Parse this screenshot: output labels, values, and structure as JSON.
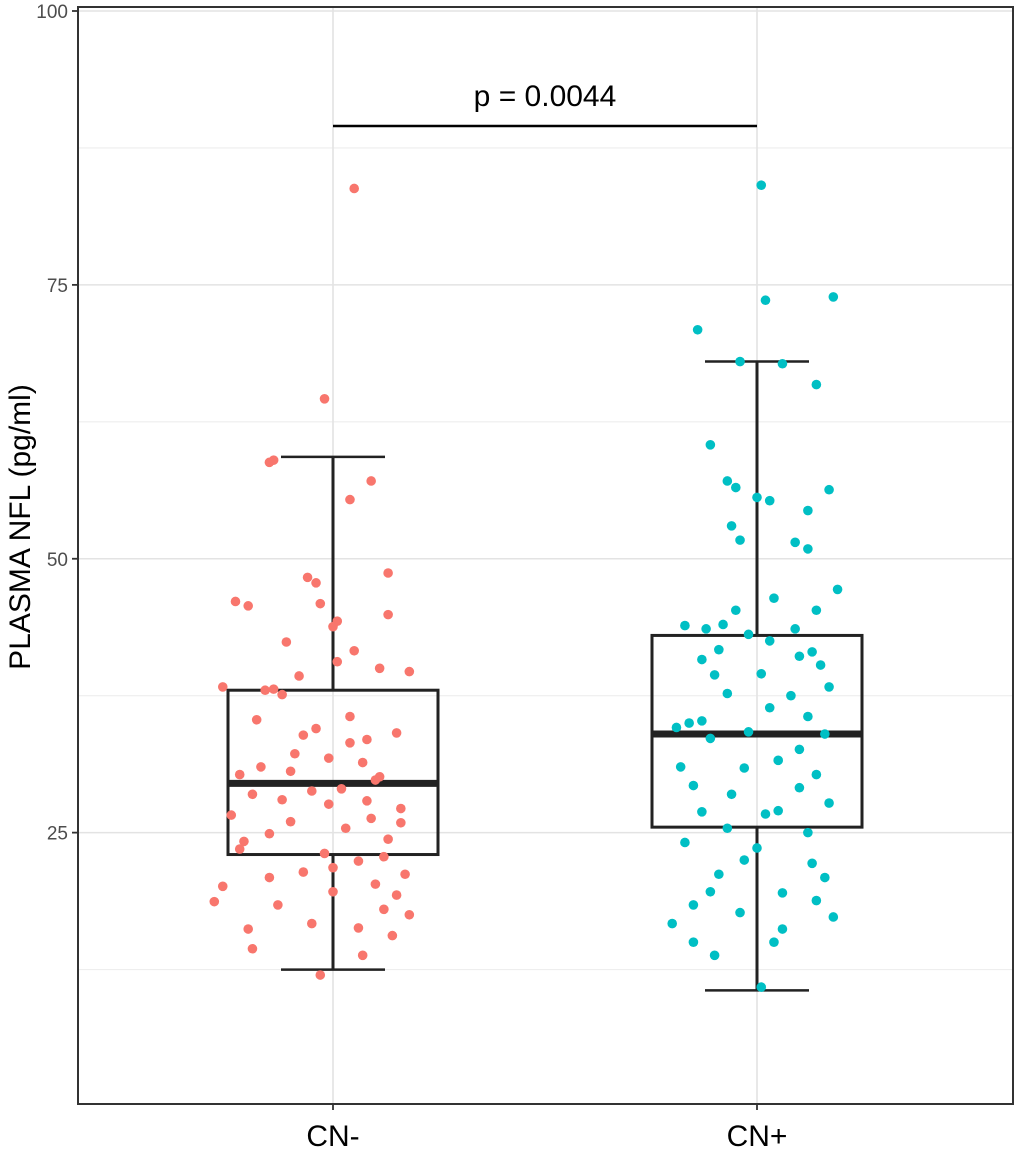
{
  "chart_data": {
    "type": "boxplot",
    "title": "",
    "xlabel": "",
    "ylabel": "PLASMA NFL (pg/ml)",
    "ylim": [
      0,
      100
    ],
    "yticks": [
      25,
      50,
      75,
      100
    ],
    "grid": true,
    "categories": [
      "CN-",
      "CN+"
    ],
    "colors": [
      "#F8766D",
      "#00BFC4"
    ],
    "annotation": {
      "text": "p = 0.0044",
      "level": 89.5
    },
    "boxes": [
      {
        "category": "CN-",
        "whisker_low": 12.5,
        "q1": 23.0,
        "median": 29.5,
        "q3": 38.0,
        "whisker_high": 59.3
      },
      {
        "category": "CN+",
        "whisker_low": 10.6,
        "q1": 25.5,
        "median": 34.0,
        "q3": 43.0,
        "whisker_high": 68.0
      }
    ],
    "points": [
      [
        [
          0.05,
          83.8
        ],
        [
          -0.02,
          64.6
        ],
        [
          -0.14,
          59.0
        ],
        [
          -0.15,
          58.8
        ],
        [
          0.09,
          57.1
        ],
        [
          0.04,
          55.4
        ],
        [
          -0.23,
          46.1
        ],
        [
          -0.2,
          45.7
        ],
        [
          -0.03,
          45.9
        ],
        [
          0.13,
          44.9
        ],
        [
          0.01,
          44.3
        ],
        [
          0.0,
          43.8
        ],
        [
          -0.11,
          42.4
        ],
        [
          0.05,
          41.6
        ],
        [
          0.01,
          40.6
        ],
        [
          0.11,
          40.0
        ],
        [
          -0.08,
          39.3
        ],
        [
          -0.14,
          38.1
        ],
        [
          -0.16,
          38.0
        ],
        [
          -0.12,
          37.6
        ],
        [
          -0.26,
          38.3
        ],
        [
          -0.18,
          35.3
        ],
        [
          -0.07,
          33.9
        ],
        [
          0.04,
          33.2
        ],
        [
          -0.01,
          31.8
        ],
        [
          0.07,
          31.4
        ],
        [
          -0.22,
          30.3
        ],
        [
          -0.1,
          30.6
        ],
        [
          0.1,
          29.8
        ],
        [
          -0.19,
          28.5
        ],
        [
          -0.05,
          28.8
        ],
        [
          0.08,
          27.9
        ],
        [
          0.16,
          27.2
        ],
        [
          -0.24,
          26.6
        ],
        [
          -0.1,
          26.0
        ],
        [
          0.03,
          25.4
        ],
        [
          0.13,
          24.4
        ],
        [
          -0.21,
          24.2
        ],
        [
          -0.02,
          23.1
        ],
        [
          0.06,
          22.4
        ],
        [
          -0.07,
          21.4
        ],
        [
          0.17,
          21.2
        ],
        [
          -0.26,
          20.1
        ],
        [
          -0.13,
          18.4
        ],
        [
          0.0,
          19.6
        ],
        [
          0.12,
          18.0
        ],
        [
          -0.28,
          18.7
        ],
        [
          0.18,
          17.5
        ],
        [
          -0.2,
          16.2
        ],
        [
          -0.05,
          16.7
        ],
        [
          0.14,
          15.6
        ],
        [
          -0.19,
          14.4
        ],
        [
          0.07,
          13.8
        ],
        [
          -0.03,
          12.0
        ],
        [
          0.12,
          22.8
        ],
        [
          -0.15,
          24.9
        ],
        [
          0.09,
          26.3
        ],
        [
          0.16,
          25.9
        ],
        [
          -0.01,
          27.6
        ],
        [
          0.02,
          29.0
        ],
        [
          -0.09,
          32.2
        ],
        [
          0.15,
          34.1
        ],
        [
          -0.04,
          34.5
        ],
        [
          0.11,
          30.1
        ],
        [
          -0.17,
          31.0
        ],
        [
          0.04,
          35.6
        ],
        [
          0.18,
          39.7
        ],
        [
          -0.04,
          47.8
        ],
        [
          0.13,
          48.7
        ],
        [
          -0.06,
          48.3
        ],
        [
          0.08,
          33.5
        ],
        [
          -0.12,
          28.0
        ],
        [
          0.0,
          21.8
        ],
        [
          0.1,
          20.3
        ],
        [
          -0.15,
          20.9
        ],
        [
          0.06,
          16.3
        ],
        [
          0.15,
          19.3
        ],
        [
          -0.22,
          23.5
        ]
      ],
      [
        [
          0.01,
          84.1
        ],
        [
          0.02,
          73.6
        ],
        [
          0.18,
          73.9
        ],
        [
          -0.14,
          70.9
        ],
        [
          -0.04,
          68.0
        ],
        [
          0.06,
          67.8
        ],
        [
          0.14,
          65.9
        ],
        [
          -0.11,
          60.4
        ],
        [
          -0.07,
          57.1
        ],
        [
          -0.05,
          56.5
        ],
        [
          0.17,
          56.3
        ],
        [
          0.0,
          55.6
        ],
        [
          0.03,
          55.3
        ],
        [
          0.12,
          54.4
        ],
        [
          -0.06,
          53.0
        ],
        [
          0.09,
          51.5
        ],
        [
          -0.04,
          51.7
        ],
        [
          0.12,
          50.9
        ],
        [
          0.19,
          47.2
        ],
        [
          0.04,
          46.4
        ],
        [
          -0.05,
          45.3
        ],
        [
          0.14,
          45.3
        ],
        [
          -0.17,
          43.9
        ],
        [
          -0.12,
          43.6
        ],
        [
          -0.02,
          43.1
        ],
        [
          0.03,
          42.5
        ],
        [
          -0.09,
          41.7
        ],
        [
          0.1,
          41.1
        ],
        [
          0.15,
          40.3
        ],
        [
          -0.13,
          40.8
        ],
        [
          0.01,
          39.5
        ],
        [
          -0.1,
          39.4
        ],
        [
          0.17,
          38.3
        ],
        [
          -0.07,
          37.7
        ],
        [
          0.08,
          37.5
        ],
        [
          0.03,
          36.4
        ],
        [
          -0.13,
          35.2
        ],
        [
          0.12,
          35.6
        ],
        [
          -0.16,
          35.0
        ],
        [
          -0.02,
          34.2
        ],
        [
          0.16,
          34.0
        ],
        [
          -0.11,
          33.6
        ],
        [
          0.1,
          32.6
        ],
        [
          -0.18,
          31.0
        ],
        [
          0.05,
          31.6
        ],
        [
          -0.03,
          30.9
        ],
        [
          0.14,
          30.3
        ],
        [
          -0.15,
          29.3
        ],
        [
          0.1,
          29.1
        ],
        [
          -0.06,
          28.5
        ],
        [
          0.17,
          27.7
        ],
        [
          -0.13,
          26.9
        ],
        [
          0.02,
          26.7
        ],
        [
          -0.07,
          25.4
        ],
        [
          0.12,
          25.0
        ],
        [
          -0.17,
          24.1
        ],
        [
          0.0,
          23.6
        ],
        [
          -0.03,
          22.5
        ],
        [
          0.13,
          22.2
        ],
        [
          -0.09,
          21.2
        ],
        [
          0.16,
          20.9
        ],
        [
          -0.11,
          19.6
        ],
        [
          0.06,
          19.5
        ],
        [
          -0.15,
          18.4
        ],
        [
          0.14,
          18.8
        ],
        [
          -0.04,
          17.7
        ],
        [
          0.18,
          17.3
        ],
        [
          0.06,
          16.2
        ],
        [
          -0.2,
          16.7
        ],
        [
          -0.15,
          15.0
        ],
        [
          0.04,
          15.0
        ],
        [
          -0.1,
          13.8
        ],
        [
          0.01,
          10.9
        ],
        [
          0.09,
          43.6
        ],
        [
          -0.08,
          44.0
        ],
        [
          0.13,
          41.5
        ],
        [
          0.05,
          27.0
        ],
        [
          -0.19,
          34.6
        ]
      ]
    ]
  }
}
